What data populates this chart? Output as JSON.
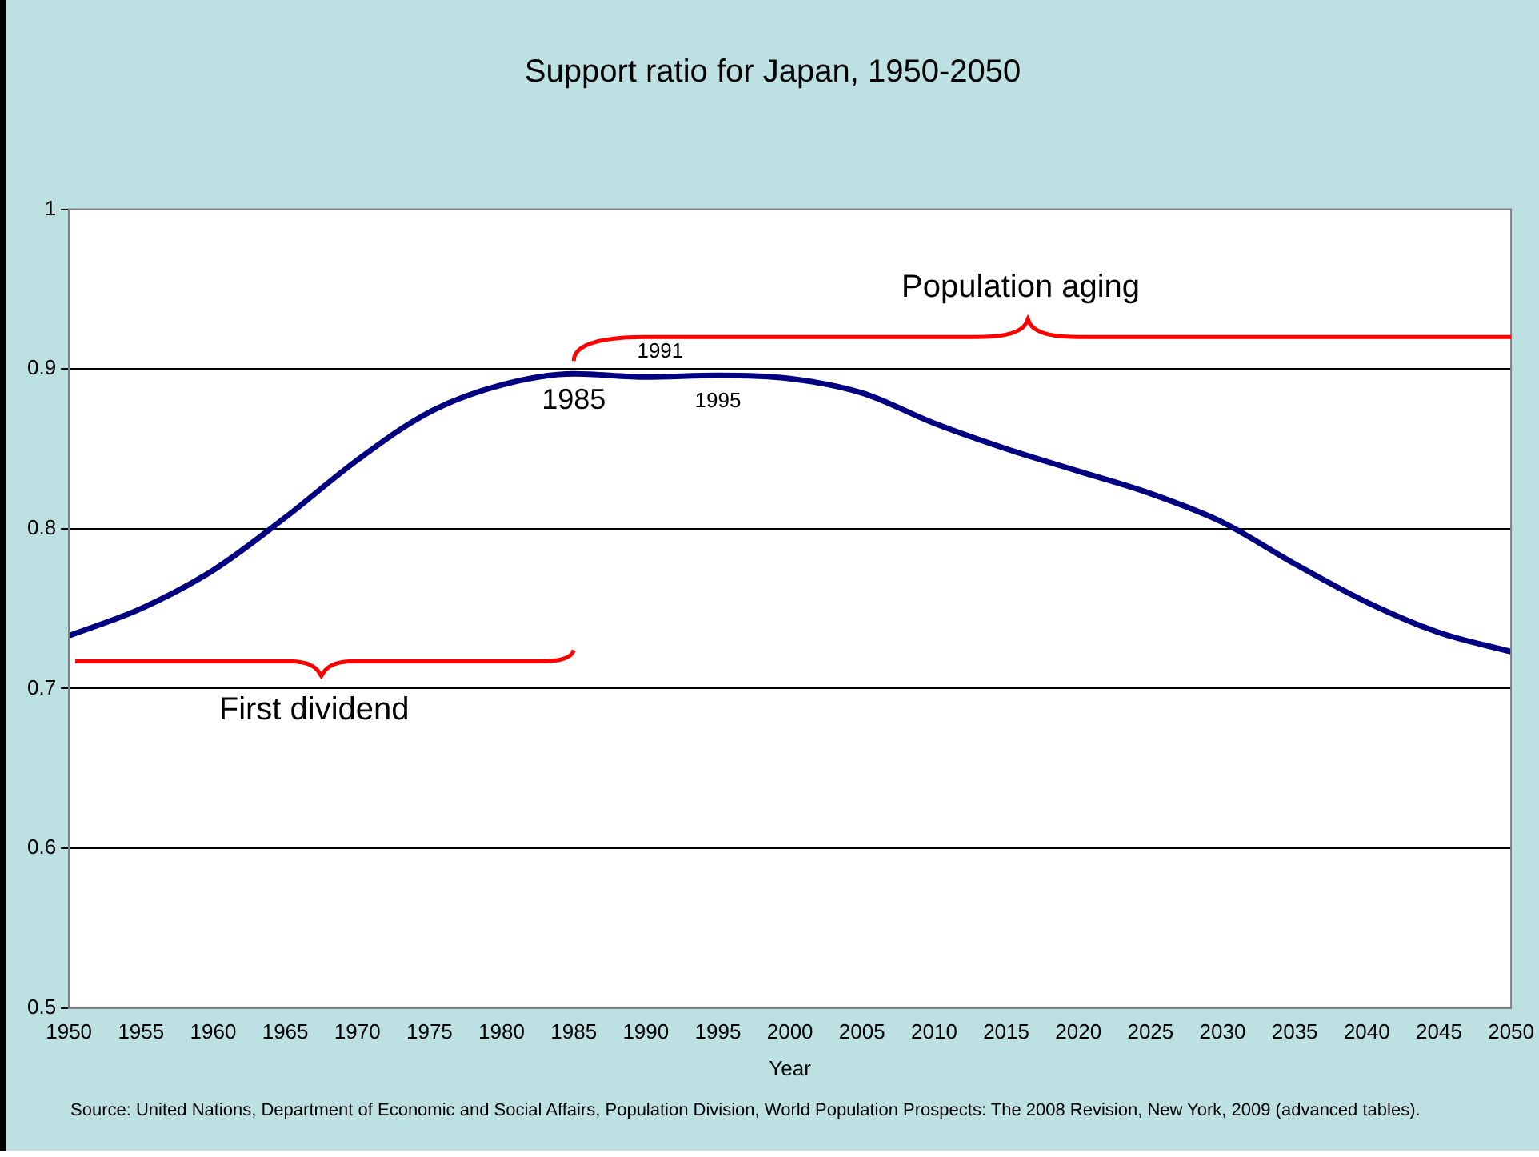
{
  "chart_data": {
    "type": "line",
    "title": "Support ratio for Japan, 1950-2050",
    "xlabel": "Year",
    "x": [
      1950,
      1955,
      1960,
      1965,
      1970,
      1975,
      1980,
      1985,
      1990,
      1995,
      2000,
      2005,
      2010,
      2015,
      2020,
      2025,
      2030,
      2035,
      2040,
      2045,
      2050
    ],
    "series": [
      {
        "color": "#000080",
        "values": [
          0.733,
          0.75,
          0.774,
          0.807,
          0.843,
          0.873,
          0.89,
          0.897,
          0.895,
          0.896,
          0.894,
          0.885,
          0.866,
          0.85,
          0.836,
          0.822,
          0.804,
          0.778,
          0.754,
          0.735,
          0.723
        ]
      }
    ],
    "xlim": [
      1950,
      2050
    ],
    "xticks": [
      1950,
      1955,
      1960,
      1965,
      1970,
      1975,
      1980,
      1985,
      1990,
      1995,
      2000,
      2005,
      2010,
      2015,
      2020,
      2025,
      2030,
      2035,
      2040,
      2045,
      2050
    ],
    "ylim": [
      0.5,
      1
    ],
    "yticks": [
      0.5,
      0.6,
      0.7,
      0.8,
      0.9,
      1
    ],
    "grid": "y",
    "legend": false,
    "marker": "none",
    "line_style": "solid",
    "annotations": [
      "Population aging",
      "First dividend",
      {
        "text": "1985",
        "x": 1985,
        "y": 0.897
      },
      {
        "text": "1991",
        "x": 1991,
        "y": 0.895
      },
      {
        "text": "1995",
        "x": 1995,
        "y": 0.896
      },
      "Source: United Nations, Department of Economic and Social Affairs, Population Division, World Population Prospects: The 2008 Revision, New York, 2009 (advanced tables)."
    ]
  }
}
